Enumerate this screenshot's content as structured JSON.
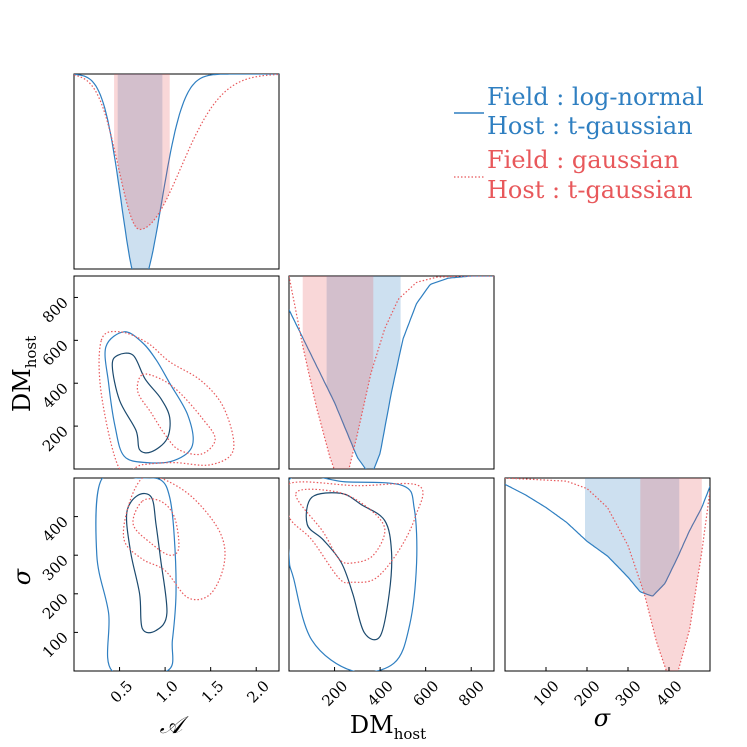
{
  "chart_data": {
    "type": "corner",
    "parameters": [
      {
        "key": "A",
        "label": "𝒜",
        "range": [
          0.0,
          2.25
        ],
        "ticks": [
          "0.5",
          "1.0",
          "1.5",
          "2.0"
        ],
        "tick_values": [
          0.5,
          1.0,
          1.5,
          2.0
        ]
      },
      {
        "key": "DM",
        "label_main": "DM",
        "label_sub": "host",
        "range": [
          0,
          900
        ],
        "ticks": [
          "200",
          "400",
          "600",
          "800"
        ],
        "tick_values": [
          200,
          400,
          600,
          800
        ]
      },
      {
        "key": "sigma",
        "label": "σ",
        "range": [
          0,
          500
        ],
        "ticks": [
          "100",
          "200",
          "300",
          "400"
        ],
        "tick_values": [
          100,
          200,
          300,
          400
        ]
      }
    ],
    "series": [
      {
        "name": "log-normal",
        "legend_line1": "Field :  log-normal",
        "legend_line2": "Host :  t-gaussian",
        "color": "#2f7fc1",
        "inner_color": "#1c4a6e",
        "line_style": "solid",
        "marginals": {
          "A": {
            "mode": 0.72,
            "left_width": 0.2,
            "right_width": 0.24,
            "peak": 1.0,
            "ci": [
              0.48,
              0.97
            ]
          },
          "DM": {
            "points": [
              [
                0,
                0.16
              ],
              [
                100,
                0.38
              ],
              [
                200,
                0.6
              ],
              [
                300,
                0.86
              ],
              [
                360,
                0.95
              ],
              [
                400,
                0.84
              ],
              [
                450,
                0.55
              ],
              [
                500,
                0.3
              ],
              [
                560,
                0.13
              ],
              [
                620,
                0.04
              ],
              [
                700,
                0.01
              ],
              [
                800,
                0.0
              ]
            ],
            "ci": [
              165,
              490
            ]
          },
          "sigma": {
            "points": [
              [
                0,
                0.03
              ],
              [
                50,
                0.08
              ],
              [
                100,
                0.14
              ],
              [
                150,
                0.21
              ],
              [
                200,
                0.3
              ],
              [
                250,
                0.37
              ],
              [
                300,
                0.47
              ],
              [
                330,
                0.54
              ],
              [
                360,
                0.56
              ],
              [
                390,
                0.5
              ],
              [
                420,
                0.38
              ],
              [
                450,
                0.25
              ],
              [
                480,
                0.14
              ],
              [
                500,
                0.04
              ]
            ],
            "ci": [
              195,
              425
            ]
          }
        },
        "contours": {
          "A-DM": {
            "inner": [
              [
                0.48,
                530
              ],
              [
                0.65,
                530
              ],
              [
                0.78,
                420
              ],
              [
                0.95,
                330
              ],
              [
                1.05,
                240
              ],
              [
                1.02,
                140
              ],
              [
                0.85,
                80
              ],
              [
                0.72,
                90
              ],
              [
                0.68,
                180
              ],
              [
                0.5,
                320
              ],
              [
                0.42,
                480
              ]
            ],
            "outer": [
              [
                0.35,
                570
              ],
              [
                0.55,
                640
              ],
              [
                0.75,
                590
              ],
              [
                0.9,
                510
              ],
              [
                1.05,
                400
              ],
              [
                1.25,
                250
              ],
              [
                1.3,
                110
              ],
              [
                1.1,
                40
              ],
              [
                0.8,
                30
              ],
              [
                0.55,
                60
              ],
              [
                0.45,
                200
              ],
              [
                0.38,
                400
              ]
            ]
          },
          "A-sigma": {
            "inner": [
              [
                0.7,
                455
              ],
              [
                0.85,
                450
              ],
              [
                0.9,
                380
              ],
              [
                0.95,
                290
              ],
              [
                1.02,
                150
              ],
              [
                0.9,
                105
              ],
              [
                0.75,
                110
              ],
              [
                0.72,
                200
              ],
              [
                0.62,
                310
              ],
              [
                0.58,
                410
              ]
            ],
            "outer": [
              [
                0.3,
                495
              ],
              [
                0.7,
                500
              ],
              [
                0.95,
                495
              ],
              [
                1.05,
                450
              ],
              [
                1.1,
                350
              ],
              [
                1.12,
                200
              ],
              [
                1.08,
                80
              ],
              [
                1.02,
                0
              ],
              [
                0.42,
                0
              ],
              [
                0.38,
                150
              ],
              [
                0.25,
                300
              ]
            ]
          },
          "DM-sigma": {
            "inner": [
              [
                100,
                450
              ],
              [
                230,
                460
              ],
              [
                320,
                430
              ],
              [
                420,
                390
              ],
              [
                450,
                310
              ],
              [
                440,
                200
              ],
              [
                400,
                90
              ],
              [
                330,
                100
              ],
              [
                280,
                200
              ],
              [
                230,
                280
              ],
              [
                150,
                340
              ],
              [
                80,
                380
              ]
            ],
            "outer": [
              [
                0,
                495
              ],
              [
                250,
                490
              ],
              [
                500,
                480
              ],
              [
                550,
                420
              ],
              [
                560,
                280
              ],
              [
                530,
                120
              ],
              [
                460,
                20
              ],
              [
                280,
                0
              ],
              [
                100,
                80
              ],
              [
                20,
                240
              ],
              [
                0,
                300
              ]
            ]
          }
        }
      },
      {
        "name": "gaussian",
        "legend_line1": "Field :  gaussian",
        "legend_line2": "Host :  t-gaussian",
        "color": "#e8585b",
        "inner_color": "#e8585b",
        "line_style": "dotted",
        "marginals": {
          "A": {
            "mode": 0.72,
            "left_width": 0.23,
            "right_width": 0.45,
            "peak": 0.73,
            "ci": [
              0.44,
              1.05
            ]
          },
          "DM": {
            "points": [
              [
                0,
                0.0
              ],
              [
                60,
                0.33
              ],
              [
                120,
                0.62
              ],
              [
                180,
                0.86
              ],
              [
                220,
                0.98
              ],
              [
                260,
                0.93
              ],
              [
                300,
                0.75
              ],
              [
                360,
                0.46
              ],
              [
                420,
                0.25
              ],
              [
                480,
                0.11
              ],
              [
                560,
                0.03
              ],
              [
                650,
                0.005
              ],
              [
                800,
                0.0
              ]
            ],
            "ci": [
              60,
              370
            ]
          },
          "sigma": {
            "points": [
              [
                0,
                0.0
              ],
              [
                150,
                0.015
              ],
              [
                200,
                0.05
              ],
              [
                250,
                0.14
              ],
              [
                300,
                0.32
              ],
              [
                340,
                0.55
              ],
              [
                370,
                0.78
              ],
              [
                400,
                0.95
              ],
              [
                420,
                0.93
              ],
              [
                450,
                0.72
              ],
              [
                480,
                0.35
              ],
              [
                500,
                0.06
              ]
            ],
            "ci": [
              330,
              480
            ]
          }
        },
        "contours": {
          "A-DM": {
            "inner": [
              [
                0.75,
                440
              ],
              [
                0.95,
                420
              ],
              [
                1.15,
                360
              ],
              [
                1.4,
                240
              ],
              [
                1.55,
                140
              ],
              [
                1.4,
                70
              ],
              [
                1.15,
                90
              ],
              [
                1.0,
                160
              ],
              [
                0.85,
                260
              ],
              [
                0.7,
                360
              ]
            ],
            "outer": [
              [
                0.3,
                600
              ],
              [
                0.5,
                640
              ],
              [
                0.8,
                590
              ],
              [
                1.05,
                500
              ],
              [
                1.4,
                410
              ],
              [
                1.65,
                280
              ],
              [
                1.75,
                90
              ],
              [
                1.5,
                20
              ],
              [
                1.1,
                30
              ],
              [
                0.75,
                20
              ],
              [
                0.5,
                0
              ],
              [
                0.3,
                350
              ]
            ]
          },
          "A-sigma": {
            "inner": [
              [
                0.75,
                440
              ],
              [
                0.95,
                440
              ],
              [
                1.1,
                400
              ],
              [
                1.15,
                320
              ],
              [
                1.05,
                300
              ],
              [
                0.85,
                330
              ],
              [
                0.65,
                380
              ]
            ],
            "outer": [
              [
                0.95,
                500
              ],
              [
                1.3,
                450
              ],
              [
                1.6,
                360
              ],
              [
                1.65,
                280
              ],
              [
                1.5,
                200
              ],
              [
                1.25,
                190
              ],
              [
                1.0,
                260
              ],
              [
                0.75,
                290
              ],
              [
                0.55,
                340
              ],
              [
                0.6,
                430
              ],
              [
                0.75,
                500
              ]
            ]
          },
          "DM-sigma": {
            "inner": [
              [
                30,
                460
              ],
              [
                200,
                465
              ],
              [
                330,
                430
              ],
              [
                420,
                370
              ],
              [
                370,
                300
              ],
              [
                280,
                280
              ],
              [
                220,
                290
              ],
              [
                150,
                360
              ]
            ],
            "outer": [
              [
                0,
                485
              ],
              [
                300,
                480
              ],
              [
                570,
                480
              ],
              [
                555,
                400
              ],
              [
                480,
                310
              ],
              [
                380,
                240
              ],
              [
                280,
                230
              ],
              [
                220,
                240
              ],
              [
                100,
                340
              ],
              [
                0,
                400
              ]
            ]
          }
        }
      }
    ]
  }
}
